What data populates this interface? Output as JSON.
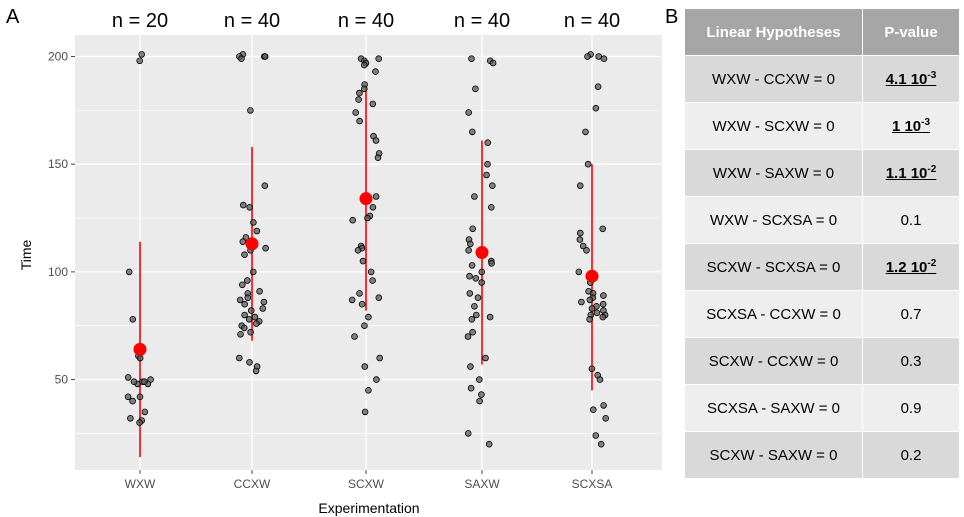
{
  "panel_a_label": "A",
  "panel_b_label": "B",
  "chart_data": {
    "type": "scatter",
    "xlabel": "Experimentation",
    "ylabel": "Time",
    "categories": [
      "WXW",
      "CCXW",
      "SCXW",
      "SAXW",
      "SCXSA"
    ],
    "group_counts": [
      "n = 20",
      "n = 40",
      "n = 40",
      "n = 40",
      "n = 40"
    ],
    "ylim": [
      8,
      210
    ],
    "yticks": [
      50,
      100,
      150,
      200
    ],
    "grid": true,
    "colors": {
      "panel_bg": "#ebebeb",
      "grid": "#ffffff",
      "point_fill": "#595959",
      "summary": "#ff0000"
    },
    "summary": [
      {
        "mean": 64,
        "low": 14,
        "high": 114
      },
      {
        "mean": 113,
        "low": 68,
        "high": 158
      },
      {
        "mean": 134,
        "low": 82,
        "high": 186
      },
      {
        "mean": 109,
        "low": 57,
        "high": 161
      },
      {
        "mean": 98,
        "low": 45,
        "high": 150
      }
    ],
    "points": [
      [
        198,
        201,
        100,
        78,
        61,
        60,
        51,
        50,
        49,
        48,
        49,
        48,
        49,
        42,
        42,
        40,
        35,
        32,
        31,
        30
      ],
      [
        201,
        200,
        200,
        200,
        199,
        175,
        140,
        131,
        130,
        123,
        119,
        116,
        114,
        111,
        110,
        108,
        100,
        96,
        94,
        91,
        90,
        88,
        87,
        86,
        85,
        83,
        82,
        80,
        79,
        78,
        77,
        76,
        75,
        74,
        72,
        71,
        60,
        58,
        56,
        54
      ],
      [
        199,
        199,
        198,
        197,
        196,
        193,
        187,
        185,
        183,
        180,
        178,
        174,
        170,
        163,
        161,
        155,
        153,
        135,
        130,
        126,
        125,
        124,
        112,
        111,
        110,
        105,
        100,
        96,
        90,
        88,
        87,
        85,
        79,
        75,
        70,
        60,
        56,
        50,
        45,
        35
      ],
      [
        199,
        198,
        197,
        185,
        174,
        165,
        160,
        150,
        145,
        140,
        135,
        130,
        120,
        115,
        113,
        110,
        108,
        105,
        104,
        103,
        100,
        98,
        97,
        95,
        90,
        88,
        84,
        80,
        79,
        78,
        72,
        70,
        60,
        56,
        50,
        46,
        43,
        40,
        25,
        20
      ],
      [
        201,
        200,
        200,
        199,
        186,
        176,
        165,
        150,
        140,
        120,
        118,
        115,
        112,
        110,
        100,
        98,
        95,
        91,
        90,
        89,
        88,
        87,
        86,
        85,
        84,
        83,
        82,
        81,
        80,
        80,
        79,
        78,
        55,
        52,
        50,
        38,
        36,
        32,
        24,
        20
      ]
    ]
  },
  "table": {
    "headers": [
      "Linear Hypotheses",
      "P-value"
    ],
    "rows": [
      {
        "hypothesis": "WXW - CCXW = 0",
        "pvalue": "4.1 10",
        "exp": "-3",
        "sig": true,
        "shade": "dark"
      },
      {
        "hypothesis": "WXW - SCXW = 0",
        "pvalue": "1 10",
        "exp": "-3",
        "sig": true,
        "shade": "light"
      },
      {
        "hypothesis": "WXW - SAXW = 0",
        "pvalue": "1.1 10",
        "exp": "-2",
        "sig": true,
        "shade": "dark"
      },
      {
        "hypothesis": "WXW - SCXSA = 0",
        "pvalue": "0.1",
        "exp": "",
        "sig": false,
        "shade": "light"
      },
      {
        "hypothesis": "SCXW - SCXSA = 0",
        "pvalue": "1.2 10",
        "exp": "-2",
        "sig": true,
        "shade": "dark"
      },
      {
        "hypothesis": "SCXSA - CCXW = 0",
        "pvalue": "0.7",
        "exp": "",
        "sig": false,
        "shade": "light"
      },
      {
        "hypothesis": "SCXW - CCXW = 0",
        "pvalue": "0.3",
        "exp": "",
        "sig": false,
        "shade": "dark"
      },
      {
        "hypothesis": "SCXSA - SAXW = 0",
        "pvalue": "0.9",
        "exp": "",
        "sig": false,
        "shade": "light"
      },
      {
        "hypothesis": "SCXW - SAXW = 0",
        "pvalue": "0.2",
        "exp": "",
        "sig": false,
        "shade": "dark"
      }
    ]
  }
}
